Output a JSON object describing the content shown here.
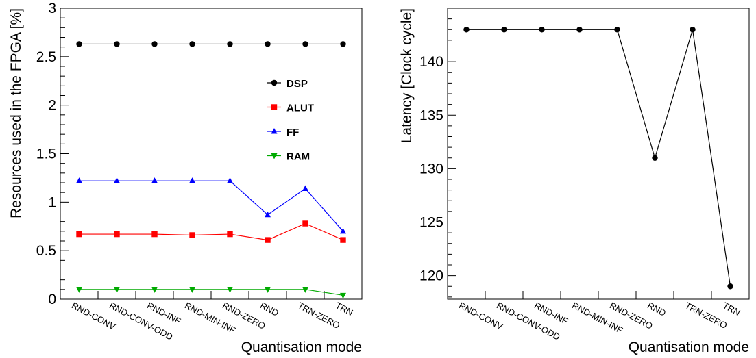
{
  "chart_data": [
    {
      "type": "line",
      "title": "",
      "xlabel": "Quantisation mode",
      "ylabel": "Resources used in the FPGA [%]",
      "categories": [
        "RND-CONV",
        "RND-CONV-ODD",
        "RND-INF",
        "RND-MIN-INF",
        "RND-ZERO",
        "RND",
        "TRN-ZERO",
        "TRN"
      ],
      "ylim": [
        0,
        3
      ],
      "yticks": [
        0,
        0.5,
        1,
        1.5,
        2,
        2.5,
        3
      ],
      "ytick_labels": [
        "0",
        "0.5",
        "1",
        "1.5",
        "2",
        "2.5",
        "3"
      ],
      "grid": false,
      "legend_position": "right",
      "series": [
        {
          "name": "DSP",
          "color": "#000000",
          "marker": "circle",
          "values": [
            2.63,
            2.63,
            2.63,
            2.63,
            2.63,
            2.63,
            2.63,
            2.63
          ]
        },
        {
          "name": "ALUT",
          "color": "#ff0000",
          "marker": "square",
          "values": [
            0.67,
            0.67,
            0.67,
            0.66,
            0.67,
            0.61,
            0.78,
            0.61
          ]
        },
        {
          "name": "FF",
          "color": "#0000ff",
          "marker": "triangle-up",
          "values": [
            1.22,
            1.22,
            1.22,
            1.22,
            1.22,
            0.87,
            1.14,
            0.7
          ]
        },
        {
          "name": "RAM",
          "color": "#00aa00",
          "marker": "triangle-down",
          "values": [
            0.1,
            0.1,
            0.1,
            0.1,
            0.1,
            0.1,
            0.1,
            0.04
          ]
        }
      ]
    },
    {
      "type": "line",
      "title": "",
      "xlabel": "Quantisation mode",
      "ylabel": "Latency [Clock cycle]",
      "categories": [
        "RND-CONV",
        "RND-CONV-ODD",
        "RND-INF",
        "RND-MIN-INF",
        "RND-ZERO",
        "RND",
        "TRN-ZERO",
        "TRN"
      ],
      "ylim": [
        117.8,
        145
      ],
      "yticks": [
        120,
        125,
        130,
        135,
        140
      ],
      "ytick_labels": [
        "120",
        "125",
        "130",
        "135",
        "140"
      ],
      "grid": false,
      "series": [
        {
          "color": "#000000",
          "marker": "circle",
          "values": [
            143,
            143,
            143,
            143,
            143,
            131,
            143,
            119
          ]
        }
      ]
    }
  ]
}
